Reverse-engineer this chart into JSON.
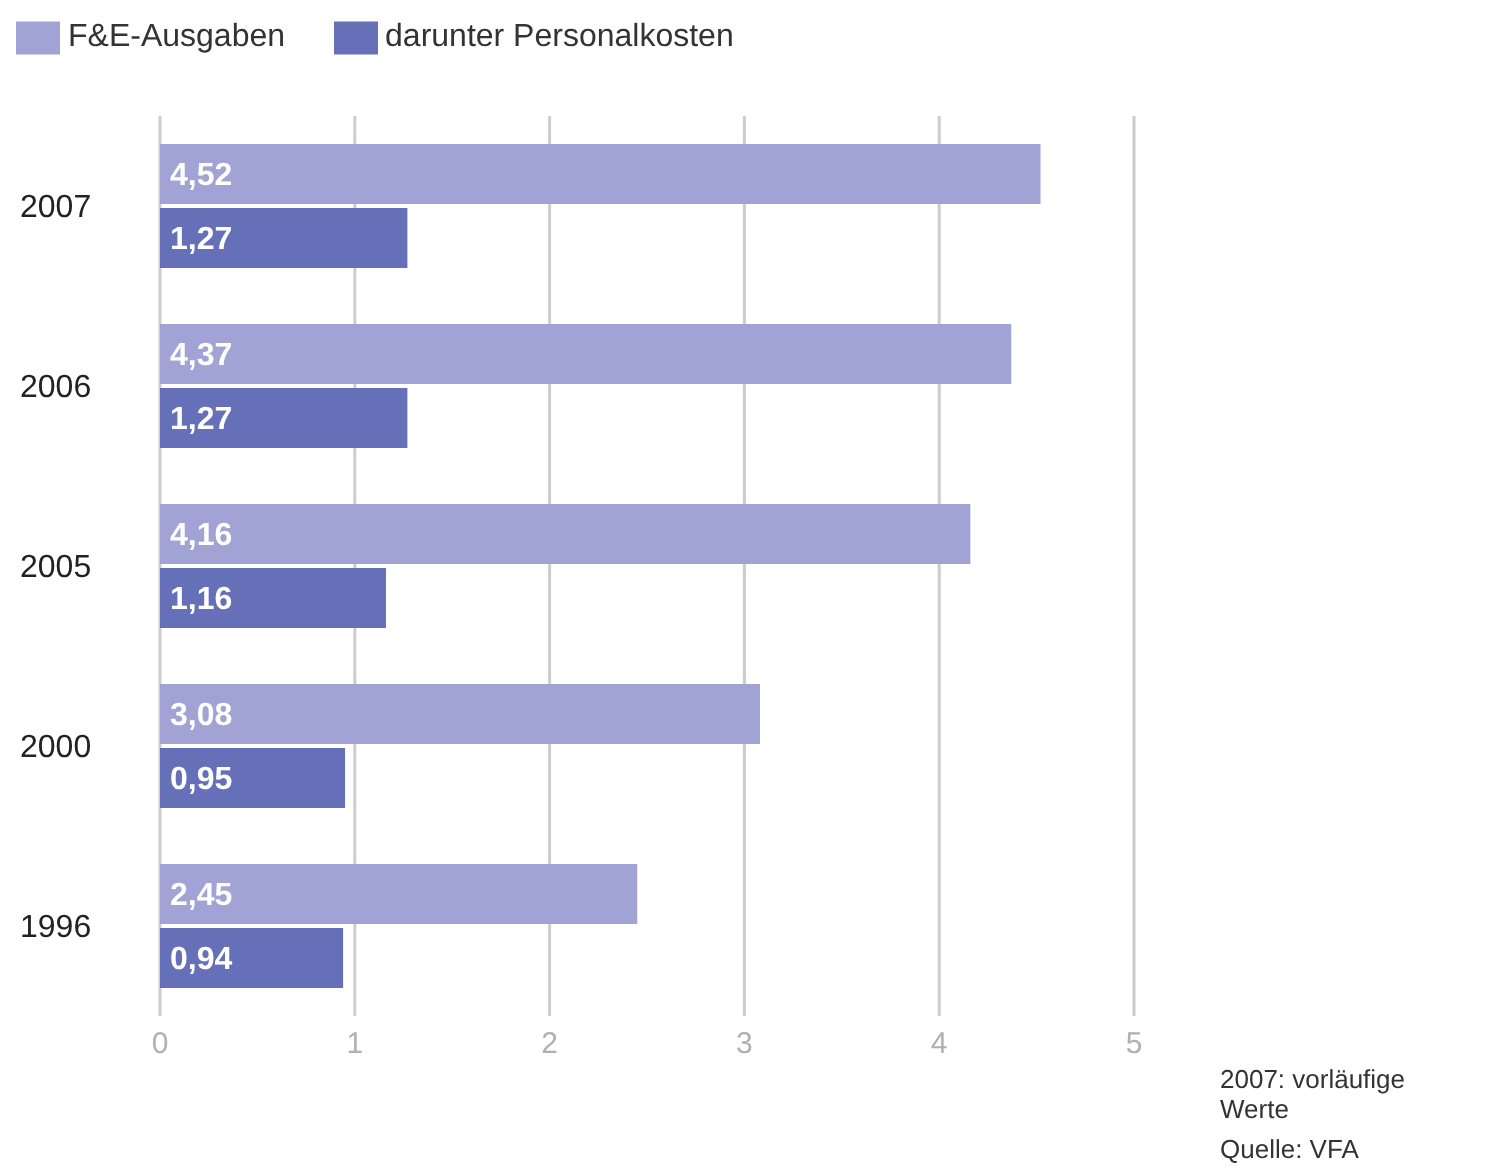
{
  "chart_data": {
    "type": "bar",
    "orientation": "horizontal",
    "categories": [
      "2007",
      "2006",
      "2005",
      "2000",
      "1996"
    ],
    "series": [
      {
        "name": "F&E-Ausgaben",
        "color": "#a0a3d3",
        "values": [
          4.52,
          4.37,
          4.16,
          3.08,
          2.45
        ],
        "value_labels": [
          "4,52",
          "4,37",
          "4,16",
          "3,08",
          "2,45"
        ]
      },
      {
        "name": "darunter Personalkosten",
        "color": "#6570b8",
        "values": [
          1.27,
          1.27,
          1.16,
          0.95,
          0.94
        ],
        "value_labels": [
          "1,27",
          "1,27",
          "1,16",
          "0,95",
          "0,94"
        ]
      }
    ],
    "xlim": [
      0,
      5
    ],
    "xticks": [
      0,
      1,
      2,
      3,
      4,
      5
    ],
    "grid": "x",
    "legend": "top left",
    "annotations": [
      "2007: vorläufige Werte",
      "Quelle: VFA"
    ]
  }
}
